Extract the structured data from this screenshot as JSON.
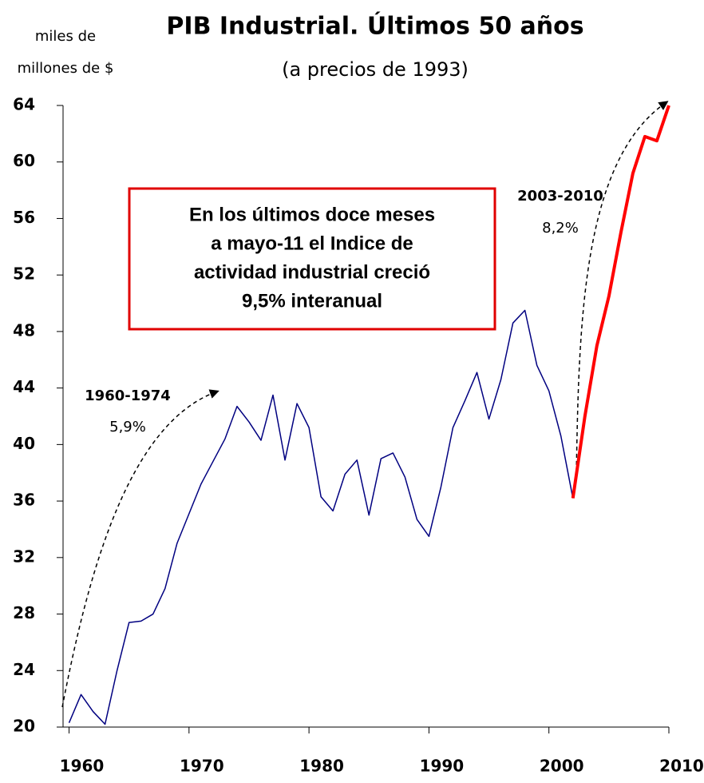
{
  "chart_data": {
    "type": "line",
    "title": "PIB Industrial. Últimos 50 años",
    "subtitle": "(a precios de 1993)",
    "ylabel": [
      "miles de",
      "millones de $"
    ],
    "x": [
      1960,
      1961,
      1962,
      1963,
      1964,
      1965,
      1966,
      1967,
      1968,
      1969,
      1970,
      1971,
      1972,
      1973,
      1974,
      1975,
      1976,
      1977,
      1978,
      1979,
      1980,
      1981,
      1982,
      1983,
      1984,
      1985,
      1986,
      1987,
      1988,
      1989,
      1990,
      1991,
      1992,
      1993,
      1994,
      1995,
      1996,
      1997,
      1998,
      1999,
      2000,
      2001,
      2002,
      2003,
      2004,
      2005,
      2006,
      2007,
      2008,
      2009,
      2010
    ],
    "series": [
      {
        "color": "#000080",
        "values": [
          20.3,
          22.3,
          21.1,
          20.2,
          24.0,
          27.4,
          27.5,
          28.0,
          29.8,
          33.0,
          35.1,
          37.2,
          38.8,
          40.4,
          42.7,
          41.6,
          40.3,
          43.5,
          38.9,
          42.9,
          41.2,
          36.3,
          35.3,
          37.9,
          38.9,
          35.0,
          39.0,
          39.4,
          37.7,
          34.7,
          33.5,
          37.0,
          41.2,
          43.1,
          45.1,
          41.8,
          44.6,
          48.6,
          49.5,
          45.6,
          43.8,
          40.6,
          36.2,
          null,
          null,
          null,
          null,
          null,
          null,
          null,
          null
        ]
      },
      {
        "color": "#ff0000",
        "values": [
          null,
          null,
          null,
          null,
          null,
          null,
          null,
          null,
          null,
          null,
          null,
          null,
          null,
          null,
          null,
          null,
          null,
          null,
          null,
          null,
          null,
          null,
          null,
          null,
          null,
          null,
          null,
          null,
          null,
          null,
          null,
          null,
          null,
          null,
          null,
          null,
          null,
          null,
          null,
          null,
          null,
          null,
          36.2,
          42.0,
          47.0,
          50.5,
          55.0,
          59.2,
          61.8,
          61.5,
          64.0
        ]
      }
    ],
    "xlim": [
      1959.5,
      2010
    ],
    "xticks": [
      1960,
      1970,
      1980,
      1990,
      2000,
      2010
    ],
    "ylim": [
      20,
      64
    ],
    "yticks": [
      20,
      24,
      28,
      32,
      36,
      40,
      44,
      48,
      52,
      56,
      60,
      64
    ],
    "box_text": [
      "En los últimos doce meses",
      "a mayo-11 el Indice de",
      "actividad industrial creció",
      "9,5% interanual"
    ],
    "annotations": [
      {
        "label": "1960-1974",
        "rate": "5,9%"
      },
      {
        "label": "2003-2010",
        "rate": "8,2%"
      }
    ]
  }
}
